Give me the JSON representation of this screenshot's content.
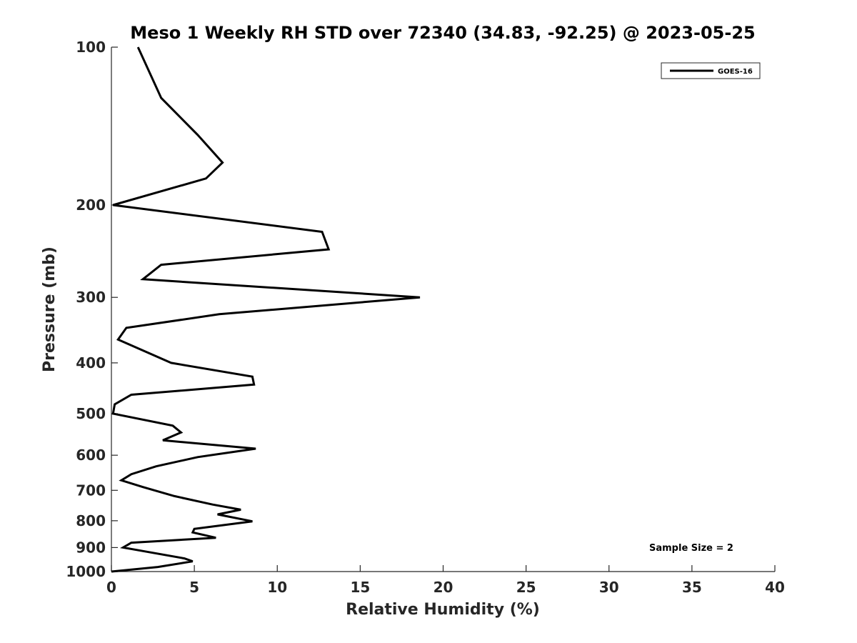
{
  "chart_data": {
    "type": "line",
    "title": "Meso 1 Weekly RH STD over 72340 (34.83, -92.25) @ 2023-05-25",
    "xlabel": "Relative Humidity (%)",
    "ylabel": "Pressure (mb)",
    "xlim": [
      0,
      40
    ],
    "ylim": [
      100,
      1000
    ],
    "y_scale": "log",
    "y_reversed": true,
    "x_ticks": [
      0,
      5,
      10,
      15,
      20,
      25,
      30,
      35,
      40
    ],
    "y_ticks": [
      100,
      200,
      300,
      400,
      500,
      600,
      700,
      800,
      900,
      1000
    ],
    "grid": false,
    "legend_position": "top-right",
    "series": [
      {
        "name": "GOES-16",
        "color": "#000000",
        "points": [
          [
            1.6,
            100
          ],
          [
            3.0,
            125
          ],
          [
            5.2,
            147
          ],
          [
            6.7,
            166
          ],
          [
            5.7,
            178
          ],
          [
            0.1,
            200
          ],
          [
            12.7,
            225
          ],
          [
            13.1,
            243
          ],
          [
            3.0,
            260
          ],
          [
            1.9,
            277
          ],
          [
            18.6,
            300
          ],
          [
            6.5,
            323
          ],
          [
            0.9,
            343
          ],
          [
            0.4,
            361
          ],
          [
            3.6,
            400
          ],
          [
            8.5,
            425
          ],
          [
            8.6,
            440
          ],
          [
            1.2,
            460
          ],
          [
            0.2,
            480
          ],
          [
            0.1,
            500
          ],
          [
            3.7,
            527
          ],
          [
            4.2,
            543
          ],
          [
            3.1,
            562
          ],
          [
            8.7,
            583
          ],
          [
            5.2,
            605
          ],
          [
            2.7,
            630
          ],
          [
            1.2,
            652
          ],
          [
            0.6,
            670
          ],
          [
            1.9,
            690
          ],
          [
            3.8,
            718
          ],
          [
            6.1,
            745
          ],
          [
            7.8,
            762
          ],
          [
            6.4,
            778
          ],
          [
            8.5,
            802
          ],
          [
            5.0,
            829
          ],
          [
            4.9,
            842
          ],
          [
            6.3,
            862
          ],
          [
            1.2,
            881
          ],
          [
            0.7,
            900
          ],
          [
            2.0,
            915
          ],
          [
            4.4,
            944
          ],
          [
            4.9,
            956
          ],
          [
            2.8,
            980
          ],
          [
            0.0,
            1000
          ]
        ]
      }
    ],
    "annotation": "Sample Size = 2"
  }
}
